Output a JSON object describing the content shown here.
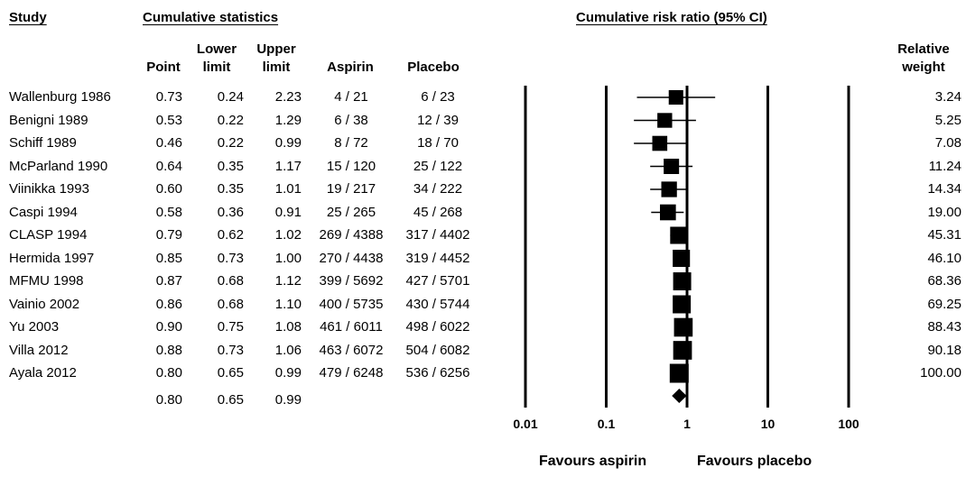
{
  "headers": {
    "study": "Study",
    "cumulative_statistics": "Cumulative statistics",
    "plot_title": "Cumulative risk ratio (95% CI)",
    "point": "Point",
    "lower_limit": [
      "Lower",
      "limit"
    ],
    "upper_limit": [
      "Upper",
      "limit"
    ],
    "aspirin": "Aspirin",
    "placebo": "Placebo",
    "relative_weight": [
      "Relative",
      "weight"
    ]
  },
  "rows": [
    {
      "study": "Wallenburg 1986",
      "point": "0.73",
      "lower": "0.24",
      "upper": "2.23",
      "aspirin": "4 / 21",
      "placebo": "6 / 23",
      "weight": "3.24"
    },
    {
      "study": "Benigni 1989",
      "point": "0.53",
      "lower": "0.22",
      "upper": "1.29",
      "aspirin": "6 / 38",
      "placebo": "12 / 39",
      "weight": "5.25"
    },
    {
      "study": "Schiff 1989",
      "point": "0.46",
      "lower": "0.22",
      "upper": "0.99",
      "aspirin": "8 / 72",
      "placebo": "18 / 70",
      "weight": "7.08"
    },
    {
      "study": "McParland 1990",
      "point": "0.64",
      "lower": "0.35",
      "upper": "1.17",
      "aspirin": "15 / 120",
      "placebo": "25 / 122",
      "weight": "11.24"
    },
    {
      "study": "Viinikka 1993",
      "point": "0.60",
      "lower": "0.35",
      "upper": "1.01",
      "aspirin": "19 / 217",
      "placebo": "34 / 222",
      "weight": "14.34"
    },
    {
      "study": "Caspi 1994",
      "point": "0.58",
      "lower": "0.36",
      "upper": "0.91",
      "aspirin": "25 / 265",
      "placebo": "45 / 268",
      "weight": "19.00"
    },
    {
      "study": "CLASP 1994",
      "point": "0.79",
      "lower": "0.62",
      "upper": "1.02",
      "aspirin": "269 / 4388",
      "placebo": "317 / 4402",
      "weight": "45.31"
    },
    {
      "study": "Hermida 1997",
      "point": "0.85",
      "lower": "0.73",
      "upper": "1.00",
      "aspirin": "270 / 4438",
      "placebo": "319 / 4452",
      "weight": "46.10"
    },
    {
      "study": "MFMU 1998",
      "point": "0.87",
      "lower": "0.68",
      "upper": "1.12",
      "aspirin": "399 / 5692",
      "placebo": "427 / 5701",
      "weight": "68.36"
    },
    {
      "study": "Vainio 2002",
      "point": "0.86",
      "lower": "0.68",
      "upper": "1.10",
      "aspirin": "400 / 5735",
      "placebo": "430 / 5744",
      "weight": "69.25"
    },
    {
      "study": "Yu 2003",
      "point": "0.90",
      "lower": "0.75",
      "upper": "1.08",
      "aspirin": "461 / 6011",
      "placebo": "498 / 6022",
      "weight": "88.43"
    },
    {
      "study": "Villa 2012",
      "point": "0.88",
      "lower": "0.73",
      "upper": "1.06",
      "aspirin": "463 / 6072",
      "placebo": "504 / 6082",
      "weight": "90.18"
    },
    {
      "study": "Ayala 2012",
      "point": "0.80",
      "lower": "0.65",
      "upper": "0.99",
      "aspirin": "479 / 6248",
      "placebo": "536 / 6256",
      "weight": "100.00"
    }
  ],
  "summary": {
    "point": "0.80",
    "lower": "0.65",
    "upper": "0.99"
  },
  "footer": {
    "favours_aspirin": "Favours aspirin",
    "favours_placebo": "Favours placebo"
  },
  "chart_data": {
    "type": "forest",
    "title": "Cumulative risk ratio (95% CI)",
    "x_scale": "log",
    "xlim": [
      0.01,
      100
    ],
    "x_ticks": [
      "0.01",
      "0.1",
      "1",
      "10",
      "100"
    ],
    "reference_line": 1,
    "series": [
      {
        "label": "Wallenburg 1986",
        "point": 0.73,
        "lower": 0.24,
        "upper": 2.23,
        "weight": 3.24
      },
      {
        "label": "Benigni 1989",
        "point": 0.53,
        "lower": 0.22,
        "upper": 1.29,
        "weight": 5.25
      },
      {
        "label": "Schiff 1989",
        "point": 0.46,
        "lower": 0.22,
        "upper": 0.99,
        "weight": 7.08
      },
      {
        "label": "McParland 1990",
        "point": 0.64,
        "lower": 0.35,
        "upper": 1.17,
        "weight": 11.24
      },
      {
        "label": "Viinikka 1993",
        "point": 0.6,
        "lower": 0.35,
        "upper": 1.01,
        "weight": 14.34
      },
      {
        "label": "Caspi 1994",
        "point": 0.58,
        "lower": 0.36,
        "upper": 0.91,
        "weight": 19.0
      },
      {
        "label": "CLASP 1994",
        "point": 0.79,
        "lower": 0.62,
        "upper": 1.02,
        "weight": 45.31
      },
      {
        "label": "Hermida 1997",
        "point": 0.85,
        "lower": 0.73,
        "upper": 1.0,
        "weight": 46.1
      },
      {
        "label": "MFMU 1998",
        "point": 0.87,
        "lower": 0.68,
        "upper": 1.12,
        "weight": 68.36
      },
      {
        "label": "Vainio 2002",
        "point": 0.86,
        "lower": 0.68,
        "upper": 1.1,
        "weight": 69.25
      },
      {
        "label": "Yu 2003",
        "point": 0.9,
        "lower": 0.75,
        "upper": 1.08,
        "weight": 88.43
      },
      {
        "label": "Villa 2012",
        "point": 0.88,
        "lower": 0.73,
        "upper": 1.06,
        "weight": 90.18
      },
      {
        "label": "Ayala 2012",
        "point": 0.8,
        "lower": 0.65,
        "upper": 0.99,
        "weight": 100.0
      }
    ],
    "summary": {
      "point": 0.8,
      "lower": 0.65,
      "upper": 0.99
    }
  }
}
